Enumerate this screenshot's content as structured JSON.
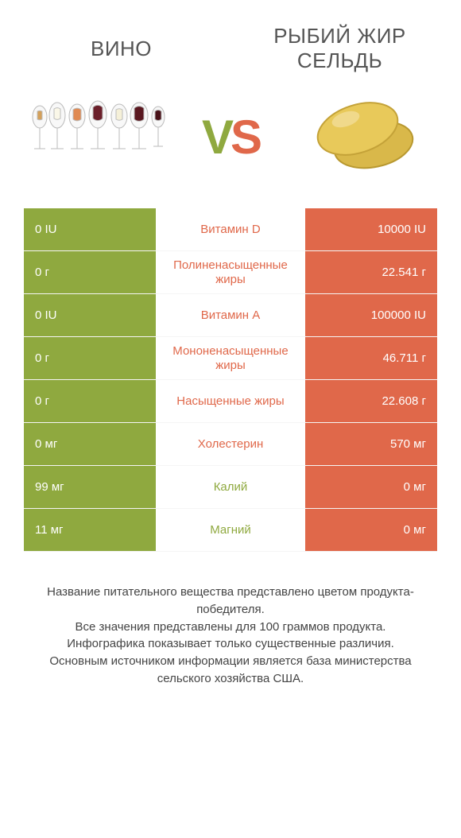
{
  "colors": {
    "left_bg": "#8fa93f",
    "right_bg": "#e0684a",
    "left_text": "#8fa93f",
    "right_text": "#e0684a",
    "body_text": "#444",
    "header_text": "#555"
  },
  "header": {
    "left_title": "ВИНО",
    "right_title": "РЫБИЙ ЖИР СЕЛЬДЬ"
  },
  "vs": {
    "v": "V",
    "s": "S"
  },
  "rows": [
    {
      "left": "0 IU",
      "mid": "Витамин D",
      "right": "10000 IU",
      "winner": "right"
    },
    {
      "left": "0 г",
      "mid": "Полиненасыщенные жиры",
      "right": "22.541 г",
      "winner": "right"
    },
    {
      "left": "0 IU",
      "mid": "Витамин A",
      "right": "100000 IU",
      "winner": "right"
    },
    {
      "left": "0 г",
      "mid": "Мононенасыщенные жиры",
      "right": "46.711 г",
      "winner": "right"
    },
    {
      "left": "0 г",
      "mid": "Насыщенные жиры",
      "right": "22.608 г",
      "winner": "right"
    },
    {
      "left": "0 мг",
      "mid": "Холестерин",
      "right": "570 мг",
      "winner": "right"
    },
    {
      "left": "99 мг",
      "mid": "Калий",
      "right": "0 мг",
      "winner": "left"
    },
    {
      "left": "11 мг",
      "mid": "Магний",
      "right": "0 мг",
      "winner": "left"
    }
  ],
  "footer": {
    "line1": "Название питательного вещества представлено цветом продукта-победителя.",
    "line2": "Все значения представлены для 100 граммов продукта.",
    "line3": "Инфографика показывает только существенные различия.",
    "line4": "Основным источником информации является база министерства сельского хозяйства США."
  }
}
